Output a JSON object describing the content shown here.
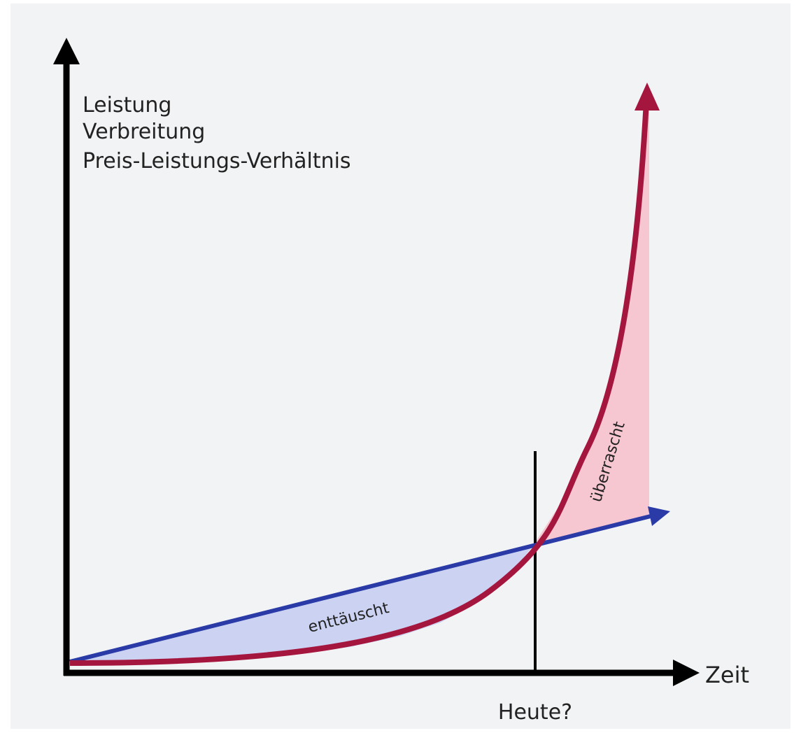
{
  "axes": {
    "y_label": [
      "Leistung",
      "Verbreitung",
      "Preis-Leistungs-Verhältnis"
    ],
    "x_label": "Zeit"
  },
  "marker": "Heute?",
  "regions": {
    "below": "enttäuscht",
    "above": "überrascht"
  }
}
